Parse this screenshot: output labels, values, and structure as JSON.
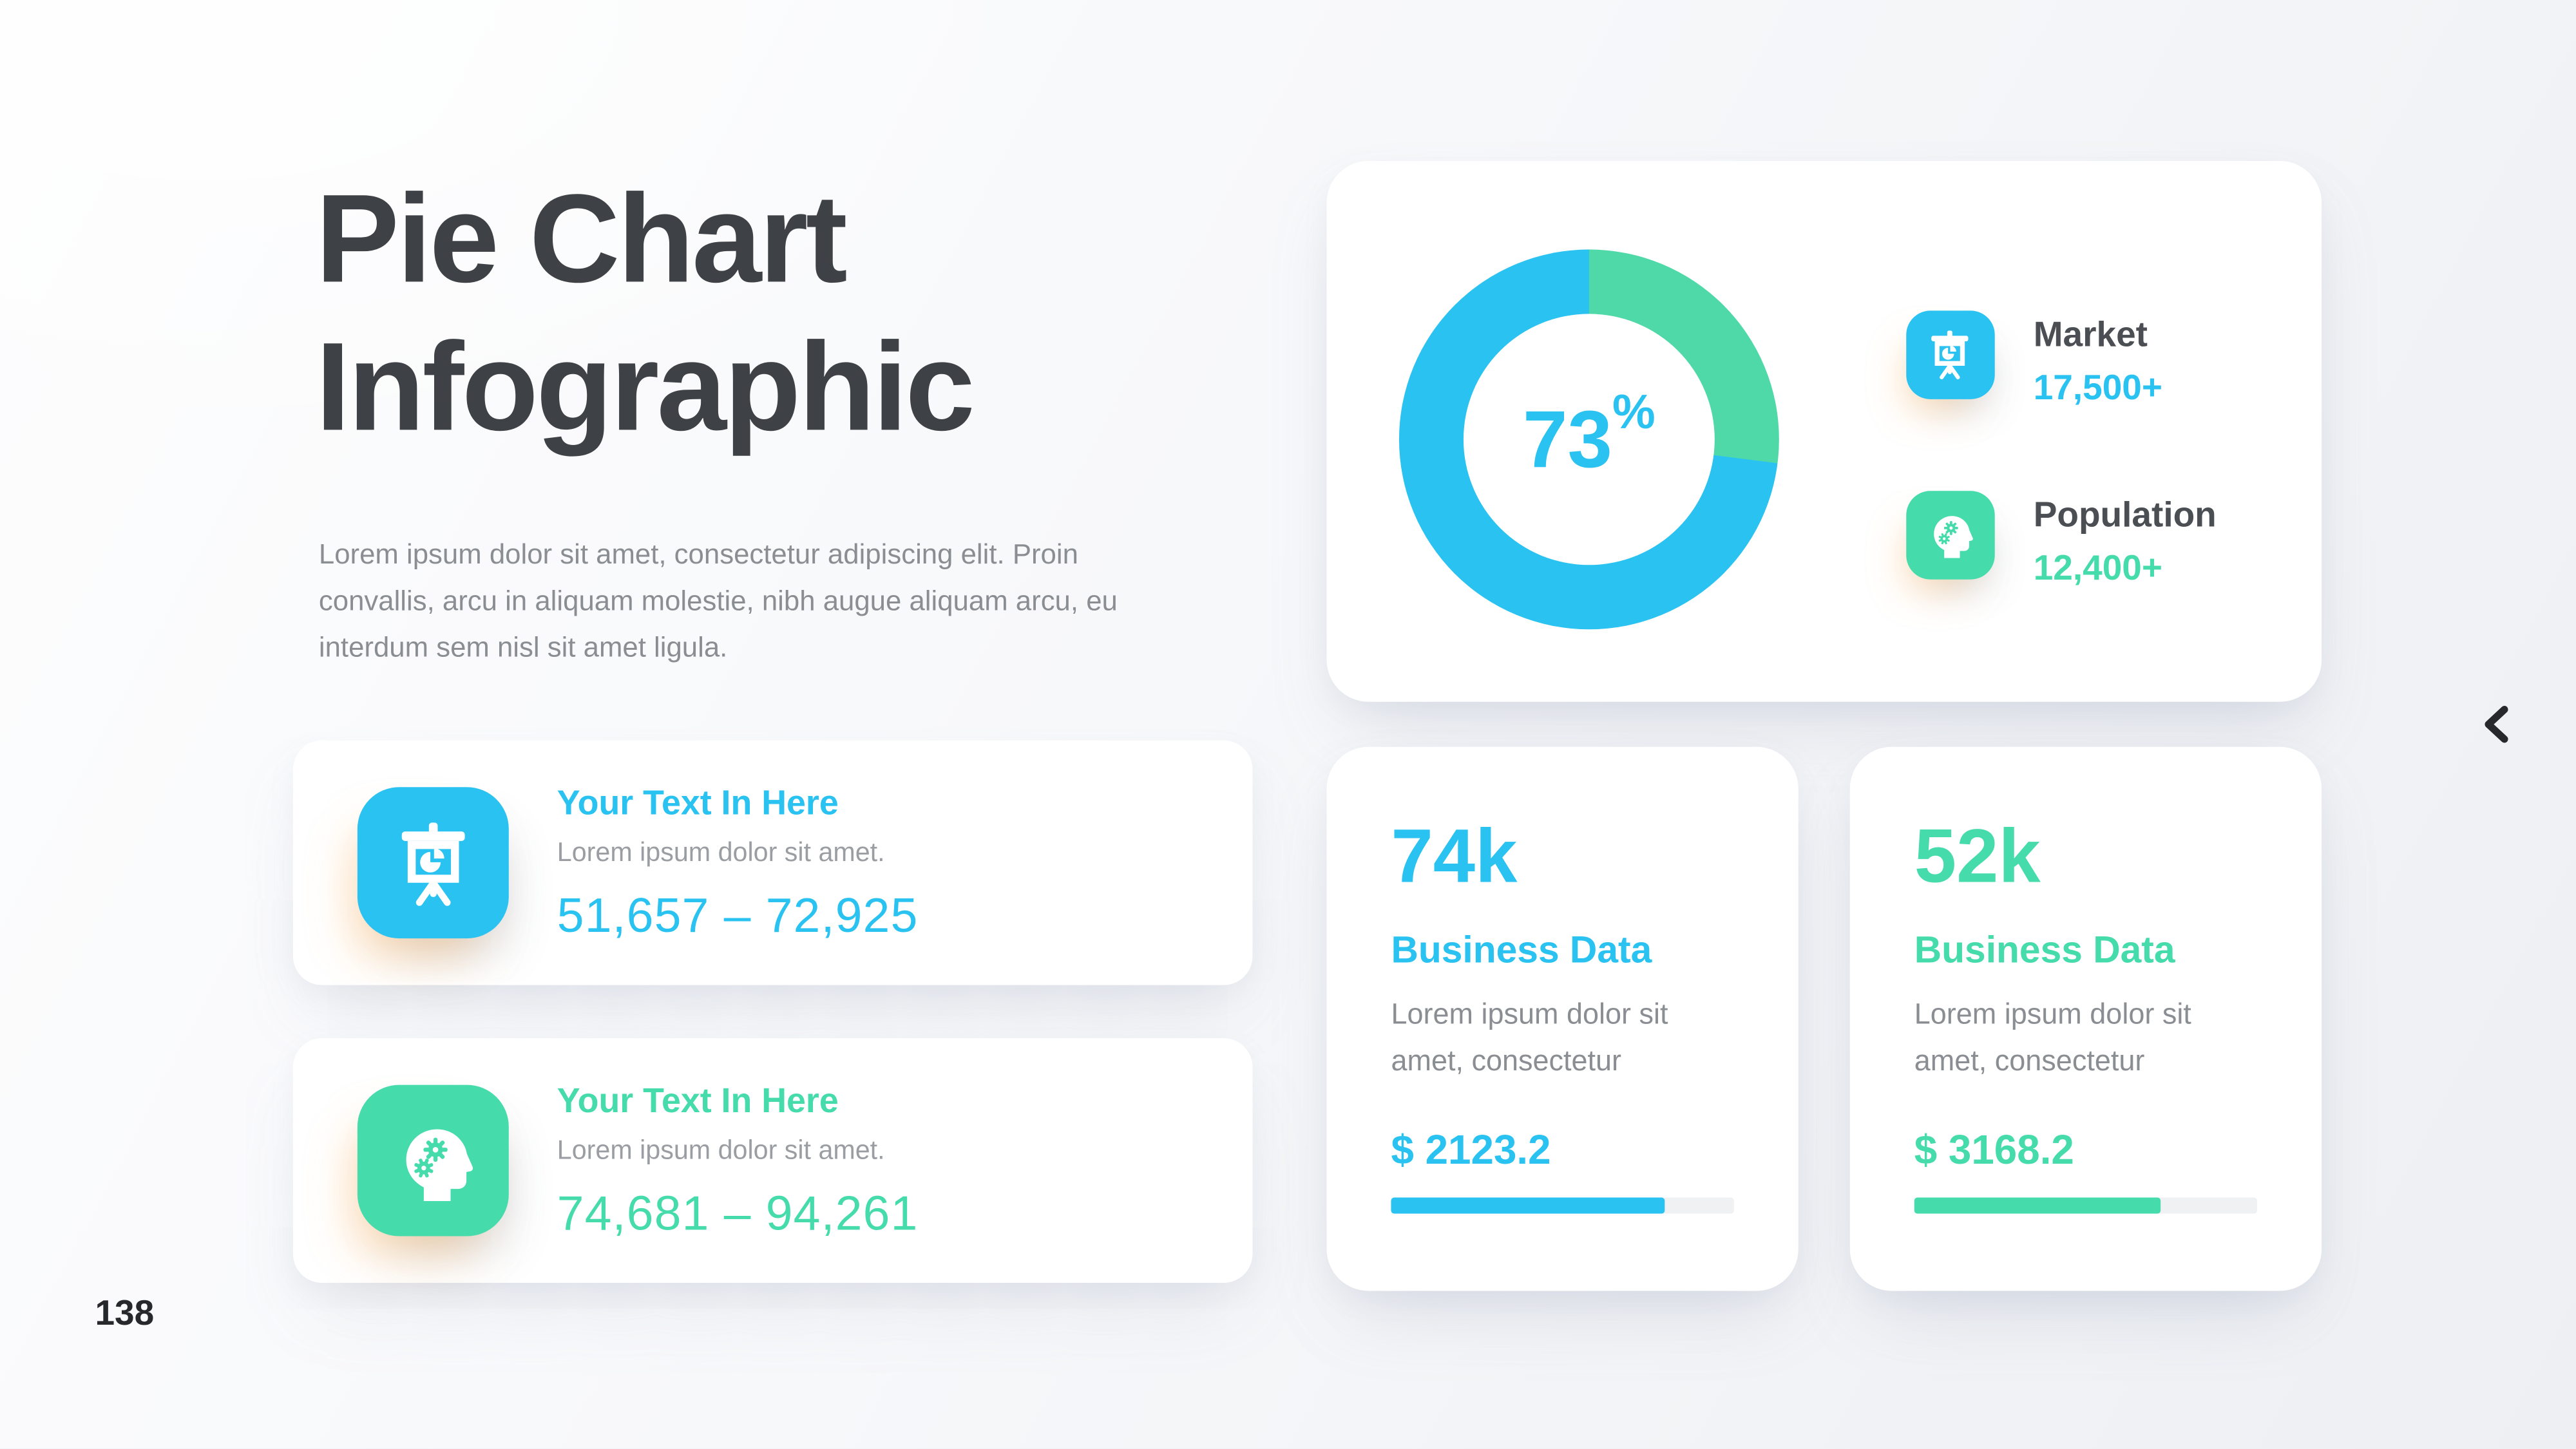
{
  "palette": {
    "blue": "#29c2f1",
    "green": "#45dbab",
    "donut_green": "#4fd9a8",
    "title_dark": "#3e4145",
    "label_dark": "#4b4f54",
    "text_gray": "#8a8e93",
    "page_dark": "#26282b",
    "track_gray": "#f0f1f3",
    "card_white": "#ffffff"
  },
  "page": {
    "number": "138"
  },
  "header": {
    "title_line1": "Pie Chart",
    "title_line2": "Infographic",
    "description": "Lorem ipsum dolor sit amet, consectetur adipiscing elit. Proin convallis, arcu in aliquam molestie, nibh augue aliquam arcu, eu interdum sem nisl sit amet ligula."
  },
  "info_cards": [
    {
      "icon": "presentation-chart-icon",
      "color": "#29c2f1",
      "title": "Your Text In Here",
      "subtitle": "Lorem ipsum dolor sit amet.",
      "range": "51,657 – 72,925"
    },
    {
      "icon": "head-gears-icon",
      "color": "#45dbab",
      "title": "Your Text In Here",
      "subtitle": "Lorem ipsum dolor sit amet.",
      "range": "74,681 – 94,261"
    }
  ],
  "chart_data": {
    "type": "pie",
    "style": "donut",
    "center_value": "73",
    "center_suffix": "%",
    "segments": [
      {
        "label": "Population",
        "value": 27,
        "color": "#4fd9a8"
      },
      {
        "label": "Market",
        "value": 73,
        "color": "#29c2f1"
      }
    ],
    "legend_position": "right",
    "legend": [
      {
        "label": "Market",
        "value": "17,500+",
        "icon": "presentation-chart-icon",
        "color": "#29c2f1"
      },
      {
        "label": "Population",
        "value": "12,400+",
        "icon": "head-gears-icon",
        "color": "#45dbab"
      }
    ]
  },
  "stat_cards": [
    {
      "value": "74k",
      "title": "Business Data",
      "description": "Lorem ipsum dolor sit amet, consectetur",
      "amount": "$ 2123.2",
      "progress": 80,
      "color": "#29c2f1"
    },
    {
      "value": "52k",
      "title": "Business Data",
      "description": "Lorem ipsum dolor sit amet, consectetur",
      "amount": "$ 3168.2",
      "progress": 72,
      "color": "#45dbab"
    }
  ],
  "nav": {
    "prev_icon": "chevron-left-icon"
  }
}
